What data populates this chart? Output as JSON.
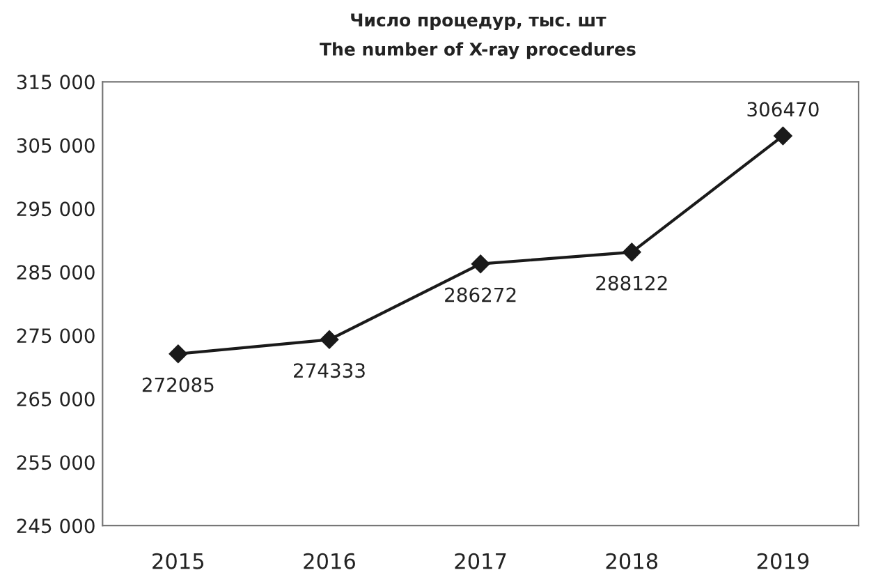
{
  "chart_data": {
    "type": "line",
    "title": "Число процедур, тыс. шт",
    "subtitle": "The number of X-ray procedures",
    "categories": [
      "2015",
      "2016",
      "2017",
      "2018",
      "2019"
    ],
    "values": [
      272085,
      274333,
      286272,
      288122,
      306470
    ],
    "color": "#1a1a1a",
    "marker": "diamond",
    "line_style": "solid",
    "data_labels": true,
    "grid": false,
    "legend": false,
    "ylim": [
      245000,
      315000
    ],
    "yticks": [
      {
        "value": 245000,
        "label": "245 000"
      },
      {
        "value": 255000,
        "label": "255 000"
      },
      {
        "value": 265000,
        "label": "265 000"
      },
      {
        "value": 275000,
        "label": "275 000"
      },
      {
        "value": 285000,
        "label": "285 000"
      },
      {
        "value": 295000,
        "label": "295 000"
      },
      {
        "value": 305000,
        "label": "305 000"
      },
      {
        "value": 315000,
        "label": "315 000"
      }
    ]
  }
}
